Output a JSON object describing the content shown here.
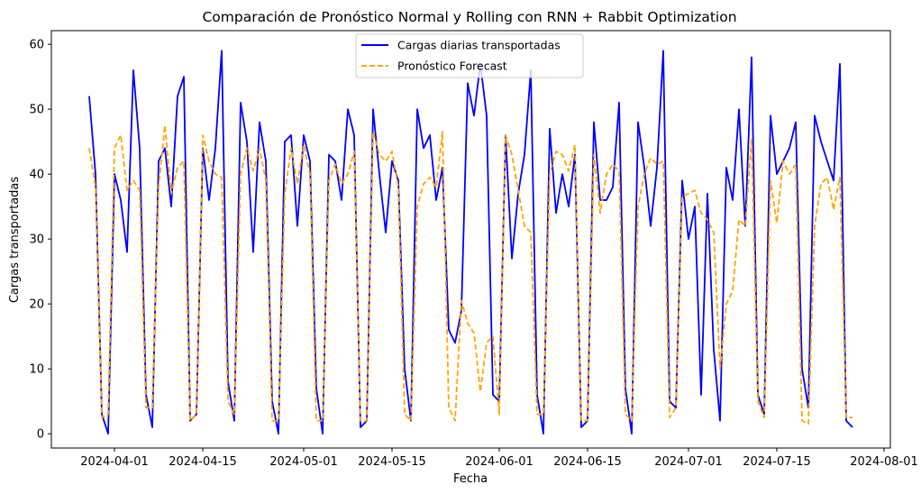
{
  "chart_data": {
    "type": "line",
    "title": "Comparación de Pronóstico Normal y Rolling con RNN + Rabbit Optimization",
    "xlabel": "Fecha",
    "ylabel": "Cargas transportadas",
    "x_ticks": [
      "2024-04-01",
      "2024-04-15",
      "2024-05-01",
      "2024-05-15",
      "2024-06-01",
      "2024-06-15",
      "2024-07-01",
      "2024-07-15",
      "2024-08-01"
    ],
    "y_ticks": [
      "0",
      "10",
      "20",
      "30",
      "40",
      "50",
      "60"
    ],
    "xlim": [
      "2024-03-22",
      "2024-08-02"
    ],
    "ylim": [
      -2.2,
      62.1
    ],
    "legend_position": "upper-center",
    "grid": false,
    "series": [
      {
        "name": "Cargas diarias transportadas",
        "color": "#0000ff",
        "style": "solid",
        "start": "2024-03-28",
        "values": [
          52,
          40,
          3,
          0,
          40,
          36,
          28,
          56,
          44,
          6,
          1,
          42,
          44,
          35,
          52,
          55,
          2,
          3,
          44,
          36,
          44,
          59,
          8,
          2,
          51,
          45,
          28,
          48,
          42,
          5,
          0,
          45,
          46,
          32,
          46,
          42,
          7,
          0,
          43,
          42,
          36,
          50,
          46,
          1,
          2,
          50,
          40,
          31,
          42,
          39,
          10,
          2,
          50,
          44,
          46,
          36,
          41,
          16,
          14,
          19,
          54,
          49,
          57,
          49,
          6,
          5,
          46,
          27,
          37,
          43,
          56,
          6,
          0,
          47,
          34,
          40,
          35,
          43,
          1,
          2,
          48,
          36,
          36,
          38,
          51,
          7,
          0,
          48,
          41,
          32,
          41,
          59,
          5,
          4,
          39,
          30,
          35,
          6,
          37,
          13,
          2,
          41,
          36,
          50,
          32,
          58,
          6,
          3,
          49,
          40,
          42,
          44,
          48,
          10,
          4,
          49,
          45,
          42,
          39,
          57,
          2,
          1
        ]
      },
      {
        "name": "Pronóstico Forecast",
        "color": "#ffa500",
        "style": "dashed",
        "start": "2024-03-28",
        "values": [
          44,
          38,
          2.5,
          3,
          44,
          46,
          37.5,
          39,
          37.5,
          4,
          4,
          38,
          47.5,
          37,
          41,
          42,
          2,
          3,
          46,
          42,
          40,
          39.5,
          5,
          3,
          40,
          44,
          40.5,
          44,
          39,
          2,
          2,
          37,
          44,
          38.5,
          44.5,
          40,
          2,
          2,
          39,
          41.5,
          38.5,
          40,
          43.5,
          2,
          2,
          46.5,
          43,
          42,
          43.5,
          38,
          3,
          2,
          35,
          38.5,
          39.5,
          38,
          46.5,
          4,
          2,
          20.5,
          17,
          15.5,
          6.5,
          14,
          15,
          3,
          46,
          43,
          37.5,
          32,
          31,
          3,
          3,
          40,
          43.5,
          43,
          40.5,
          44.5,
          2,
          2,
          43,
          34,
          40,
          41.5,
          40.5,
          3,
          2,
          35,
          40,
          42.5,
          41.5,
          42,
          2.5,
          4,
          36.5,
          37,
          37.5,
          34,
          33,
          31,
          10,
          20,
          22,
          33,
          32,
          45.5,
          5,
          2.5,
          39,
          32.5,
          42,
          40,
          41.5,
          2,
          1.5,
          32,
          38.5,
          39.5,
          34.5,
          39.5,
          2.5,
          2.5
        ]
      }
    ]
  }
}
